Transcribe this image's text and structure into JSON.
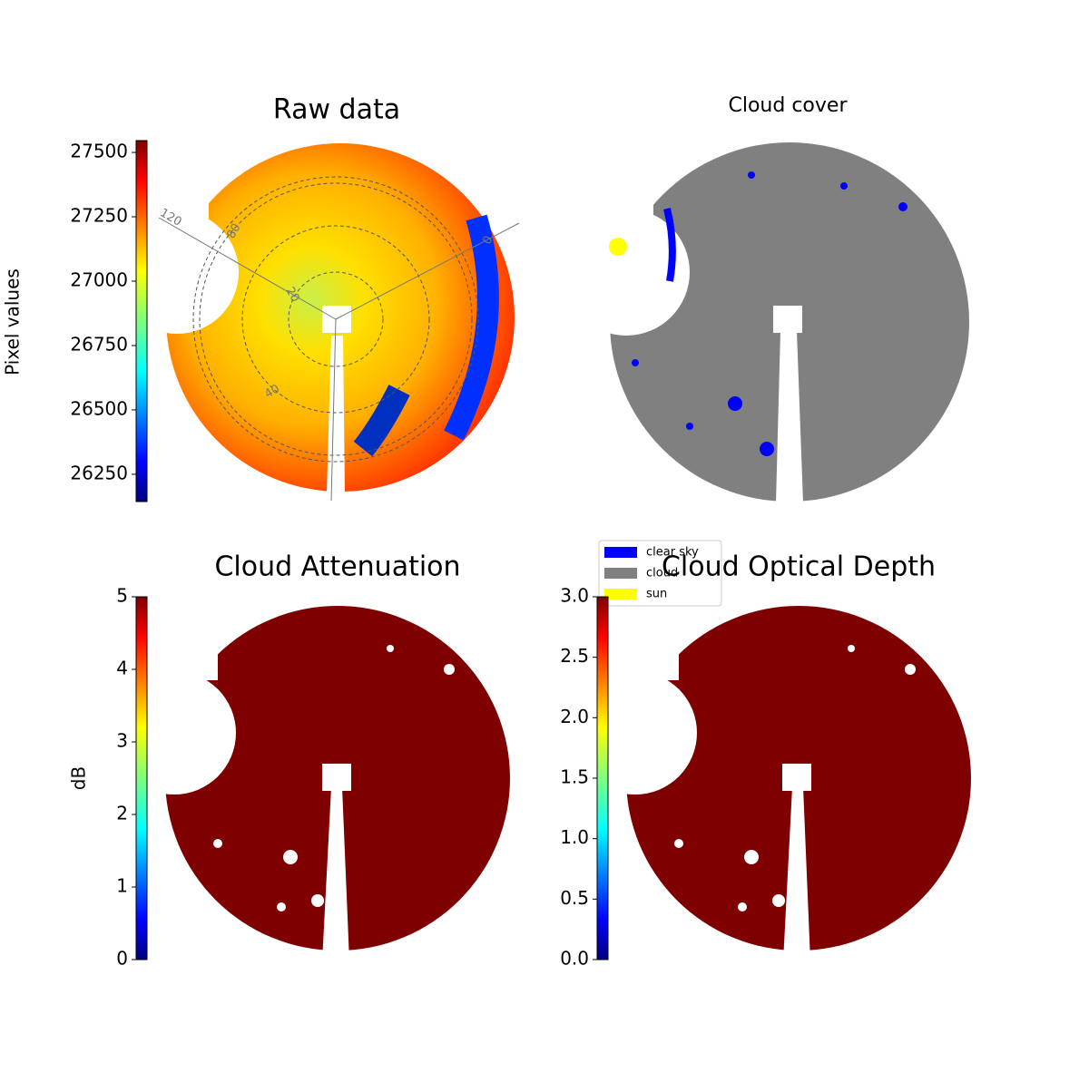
{
  "chart_data": [
    {
      "type": "image",
      "title": "Raw data",
      "colorbar_label": "Pixel values",
      "colormap": "jet",
      "ylim": [
        26144,
        27546
      ],
      "yticks": [
        26250,
        26500,
        26750,
        27000,
        27250,
        27500
      ],
      "annotations": [
        "120",
        "80",
        "20",
        "40",
        "0"
      ]
    },
    {
      "type": "image",
      "title": "Cloud cover",
      "legend": [
        {
          "name": "clear sky",
          "color": "#0000ff"
        },
        {
          "name": "cloud",
          "color": "#808080"
        },
        {
          "name": "sun",
          "color": "#ffff00"
        }
      ]
    },
    {
      "type": "image",
      "title": "Cloud Attenuation",
      "colorbar_label": "dB",
      "colormap": "jet",
      "ylim": [
        0,
        5
      ],
      "yticks": [
        0,
        1,
        2,
        3,
        4,
        5
      ]
    },
    {
      "type": "image",
      "title": "Cloud Optical Depth",
      "colormap": "jet",
      "ylim": [
        0,
        3
      ],
      "yticks": [
        {
          "value": 0,
          "label": "0.0"
        },
        0.5,
        {
          "value": 1,
          "label": "1.0"
        },
        1.5,
        {
          "value": 2,
          "label": "2.0"
        },
        2.5,
        {
          "value": 3,
          "label": "3.0"
        }
      ]
    }
  ]
}
